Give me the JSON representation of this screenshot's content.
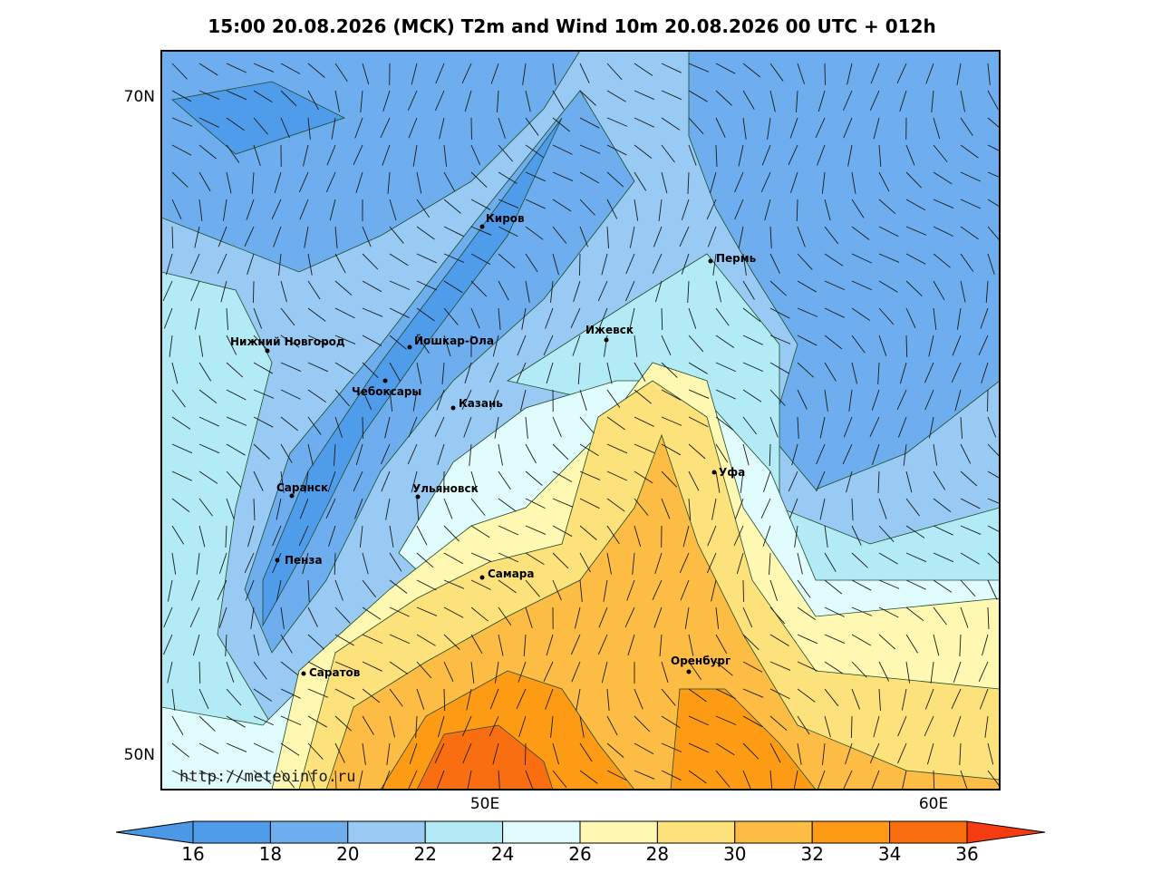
{
  "title": "15:00 20.08.2026 (MCK) T2m and Wind 10m 20.08.2026 00 UTC + 012h",
  "map": {
    "lat_labels": [
      "70N",
      "50N"
    ],
    "lon_labels": [
      "50E",
      "60E"
    ],
    "cities": [
      "Киров",
      "Пермь",
      "Нижний Новгород",
      "Йошкар-Ола",
      "Ижевск",
      "Чебоксары",
      "Казань",
      "Уфа",
      "Саранск",
      "Ульяновск",
      "Пенза",
      "Самара",
      "Оренбург",
      "Саратов"
    ],
    "credit": "http://meteoinfo.ru"
  },
  "colorbar": {
    "ticks": [
      16,
      18,
      20,
      22,
      24,
      26,
      28,
      30,
      32,
      34,
      36
    ],
    "colors": [
      "#4a98e6",
      "#4f9cea",
      "#6eaeee",
      "#98caf3",
      "#b2eaf5",
      "#e0fcfc",
      "#fff8b2",
      "#fde27c",
      "#fdbd44",
      "#fd9c14",
      "#fa6e12",
      "#f53c10"
    ]
  }
}
